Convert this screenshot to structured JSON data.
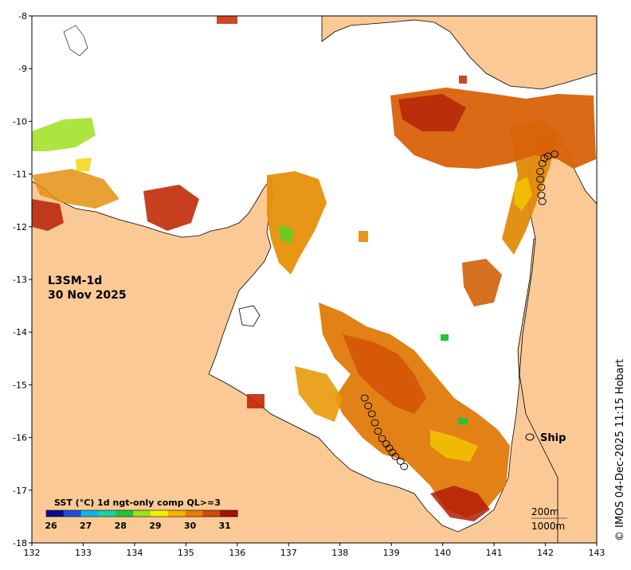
{
  "product": {
    "name": "L3SM-1d",
    "date": "30 Nov 2025"
  },
  "ship_legend": {
    "label": "Ship"
  },
  "credit": "© IMOS 04-Dec-2025 11:15 Hobart",
  "colorbar": {
    "title": "SST (°C) 1d ngt-only comp QL>=3",
    "ticks": [
      "26",
      "27",
      "28",
      "29",
      "30",
      "31"
    ],
    "range": [
      26,
      31.5
    ],
    "colors": [
      "#0b0b8c",
      "#1f4fd6",
      "#14b4e8",
      "#1fd0a0",
      "#22c43a",
      "#9ee01e",
      "#f5f000",
      "#f7b400",
      "#ea7a06",
      "#d24a04",
      "#a31208"
    ]
  },
  "contours": {
    "label_200": "200m",
    "label_1000": "1000m"
  },
  "axes": {
    "x_ticks": [
      "132",
      "133",
      "134",
      "135",
      "136",
      "137",
      "138",
      "139",
      "140",
      "141",
      "142",
      "143"
    ],
    "y_ticks": [
      "-8",
      "-9",
      "-10",
      "-11",
      "-12",
      "-13",
      "-14",
      "-15",
      "-16",
      "-17",
      "-18"
    ],
    "lon_range": [
      132,
      143
    ],
    "lat_range": [
      -18,
      -8
    ]
  },
  "colors": {
    "land": "#fbc995",
    "no_data": "#ffffff",
    "coast": "#000000"
  },
  "ship_track": [
    [
      -10.62,
      142.18
    ],
    [
      -10.66,
      142.05
    ],
    [
      -10.7,
      141.98
    ],
    [
      -10.8,
      141.94
    ],
    [
      -10.95,
      141.9
    ],
    [
      -11.1,
      141.9
    ],
    [
      -11.25,
      141.92
    ],
    [
      -11.4,
      141.92
    ],
    [
      -11.52,
      141.94
    ],
    [
      -15.25,
      138.48
    ],
    [
      -15.4,
      138.55
    ],
    [
      -15.55,
      138.62
    ],
    [
      -15.72,
      138.68
    ],
    [
      -15.88,
      138.74
    ],
    [
      -16.02,
      138.82
    ],
    [
      -16.12,
      138.9
    ],
    [
      -16.2,
      138.96
    ],
    [
      -16.28,
      139.02
    ],
    [
      -16.36,
      139.08
    ],
    [
      -16.45,
      139.18
    ],
    [
      -16.55,
      139.25
    ]
  ]
}
